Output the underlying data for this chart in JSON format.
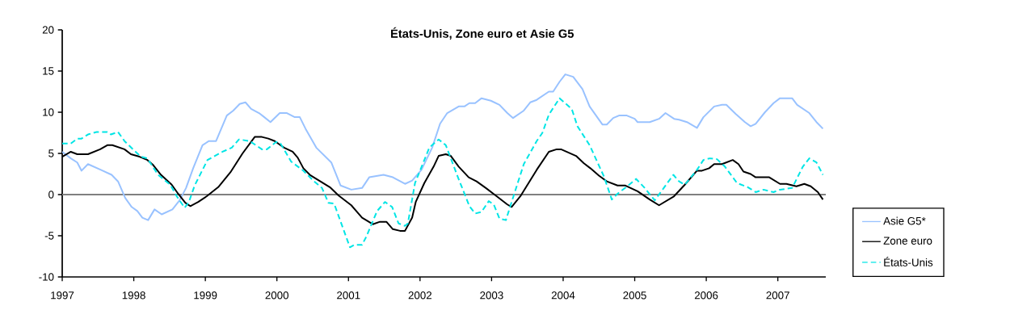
{
  "chart_data": {
    "type": "line",
    "title": "États-Unis, Zone euro et Asie G5",
    "xlim": [
      1997,
      2007.67
    ],
    "xticks": [
      1997,
      1998,
      1999,
      2000,
      2001,
      2002,
      2003,
      2004,
      2005,
      2006,
      2007
    ],
    "ylim": [
      -10,
      20
    ],
    "yticks": [
      -10,
      -5,
      0,
      5,
      10,
      15,
      20
    ],
    "grid": false,
    "legend": "right",
    "marker": "none",
    "ref_lines": [
      {
        "axis": "y",
        "value": 0,
        "color": "#808080",
        "line_style": "solid"
      }
    ],
    "series": [
      {
        "name": "Asie G5*",
        "color": "#99c2ff",
        "line_style": "solid",
        "x": [
          1997.0,
          1997.12,
          1997.21,
          1997.27,
          1997.36,
          1997.54,
          1997.69,
          1997.78,
          1997.88,
          1997.97,
          1998.05,
          1998.12,
          1998.2,
          1998.29,
          1998.39,
          1998.54,
          1998.64,
          1998.73,
          1998.83,
          1998.96,
          1999.05,
          1999.15,
          1999.3,
          1999.39,
          1999.48,
          1999.56,
          1999.64,
          1999.75,
          1999.81,
          1999.91,
          2000.04,
          2000.14,
          2000.25,
          2000.32,
          2000.4,
          2000.55,
          2000.76,
          2000.89,
          2001.04,
          2001.19,
          2001.29,
          2001.49,
          2001.62,
          2001.79,
          2001.89,
          2002.02,
          2002.17,
          2002.28,
          2002.38,
          2002.54,
          2002.62,
          2002.69,
          2002.77,
          2002.86,
          2002.99,
          2003.11,
          2003.22,
          2003.3,
          2003.45,
          2003.54,
          2003.63,
          2003.8,
          2003.86,
          2003.95,
          2004.03,
          2004.14,
          2004.27,
          2004.37,
          2004.55,
          2004.61,
          2004.7,
          2004.78,
          2004.89,
          2005.0,
          2005.04,
          2005.21,
          2005.34,
          2005.43,
          2005.55,
          2005.62,
          2005.73,
          2005.87,
          2005.96,
          2006.11,
          2006.22,
          2006.28,
          2006.41,
          2006.54,
          2006.62,
          2006.69,
          2006.82,
          2006.94,
          2007.03,
          2007.2,
          2007.27,
          2007.44,
          2007.54,
          2007.63
        ],
        "values": [
          5.2,
          4.4,
          3.9,
          2.9,
          3.7,
          3.0,
          2.4,
          1.6,
          -0.4,
          -1.5,
          -2.0,
          -2.8,
          -3.1,
          -1.8,
          -2.4,
          -1.8,
          -0.7,
          0.8,
          3.2,
          6.0,
          6.5,
          6.5,
          9.6,
          10.2,
          11.0,
          11.2,
          10.4,
          9.9,
          9.5,
          8.8,
          9.9,
          9.9,
          9.4,
          9.4,
          8.0,
          5.7,
          3.9,
          1.1,
          0.6,
          0.8,
          2.1,
          2.4,
          2.1,
          1.3,
          1.7,
          3.0,
          5.7,
          8.6,
          9.9,
          10.7,
          10.7,
          11.1,
          11.1,
          11.7,
          11.4,
          10.9,
          9.9,
          9.3,
          10.2,
          11.2,
          11.5,
          12.5,
          12.5,
          13.7,
          14.6,
          14.3,
          12.8,
          10.7,
          8.5,
          8.5,
          9.3,
          9.6,
          9.6,
          9.2,
          8.8,
          8.8,
          9.2,
          9.9,
          9.2,
          9.1,
          8.8,
          8.1,
          9.4,
          10.7,
          10.9,
          10.9,
          9.8,
          8.8,
          8.3,
          8.6,
          10.0,
          11.1,
          11.7,
          11.7,
          10.9,
          9.9,
          8.8,
          8.0
        ]
      },
      {
        "name": "Zone euro",
        "color": "#000000",
        "line_style": "solid",
        "x": [
          1997.0,
          1997.12,
          1997.21,
          1997.36,
          1997.53,
          1997.63,
          1997.7,
          1997.87,
          1997.96,
          1998.08,
          1998.19,
          1998.27,
          1998.38,
          1998.53,
          1998.62,
          1998.72,
          1998.79,
          1998.9,
          1999.02,
          1999.18,
          1999.35,
          1999.52,
          1999.69,
          1999.79,
          1999.88,
          1999.97,
          2000.1,
          2000.22,
          2000.29,
          2000.37,
          2000.46,
          2000.74,
          2000.86,
          2001.04,
          2001.19,
          2001.34,
          2001.44,
          2001.53,
          2001.62,
          2001.72,
          2001.79,
          2001.89,
          2001.94,
          2002.06,
          2002.19,
          2002.26,
          2002.36,
          2002.43,
          2002.54,
          2002.68,
          2002.79,
          2002.92,
          2003.07,
          2003.22,
          2003.28,
          2003.41,
          2003.63,
          2003.8,
          2003.91,
          2003.97,
          2004.18,
          2004.29,
          2004.38,
          2004.5,
          2004.61,
          2004.76,
          2004.87,
          2005.04,
          2005.21,
          2005.34,
          2005.55,
          2005.7,
          2005.87,
          2005.94,
          2006.04,
          2006.11,
          2006.22,
          2006.37,
          2006.45,
          2006.52,
          2006.62,
          2006.69,
          2006.88,
          2007.03,
          2007.12,
          2007.26,
          2007.37,
          2007.46,
          2007.56,
          2007.63
        ],
        "values": [
          4.6,
          5.2,
          4.9,
          4.9,
          5.5,
          6.0,
          6.0,
          5.5,
          4.9,
          4.6,
          4.2,
          3.6,
          2.4,
          1.2,
          0.1,
          -1.0,
          -1.4,
          -0.9,
          -0.2,
          0.9,
          2.7,
          5.0,
          7.0,
          7.0,
          6.8,
          6.5,
          5.7,
          5.2,
          4.5,
          3.2,
          2.4,
          0.9,
          -0.1,
          -1.3,
          -2.8,
          -3.6,
          -3.3,
          -3.3,
          -4.2,
          -4.4,
          -4.4,
          -2.8,
          -0.9,
          1.4,
          3.4,
          4.7,
          4.9,
          4.7,
          3.4,
          2.1,
          1.6,
          0.8,
          -0.2,
          -1.2,
          -1.5,
          -0.1,
          3.0,
          5.2,
          5.5,
          5.5,
          4.7,
          3.8,
          3.2,
          2.3,
          1.6,
          1.1,
          1.1,
          0.4,
          -0.6,
          -1.3,
          -0.2,
          1.2,
          2.9,
          2.9,
          3.2,
          3.7,
          3.7,
          4.2,
          3.7,
          2.8,
          2.5,
          2.1,
          2.1,
          1.3,
          1.3,
          1.0,
          1.3,
          1.0,
          0.3,
          -0.6
        ]
      },
      {
        "name": "États-Unis",
        "color": "#00e5e5",
        "line_style": "dashed",
        "x": [
          1997.0,
          1997.12,
          1997.21,
          1997.27,
          1997.36,
          1997.48,
          1997.63,
          1997.68,
          1997.78,
          1997.87,
          1998.0,
          1998.1,
          1998.19,
          1998.34,
          1998.51,
          1998.6,
          1998.71,
          1998.77,
          1998.85,
          1999.03,
          1999.24,
          1999.37,
          1999.47,
          1999.62,
          1999.79,
          1999.86,
          1999.99,
          2000.05,
          2000.2,
          2000.37,
          2000.52,
          2000.63,
          2000.72,
          2000.8,
          2001.02,
          2001.08,
          2001.19,
          2001.25,
          2001.4,
          2001.51,
          2001.61,
          2001.7,
          2001.79,
          2001.83,
          2001.93,
          2002.13,
          2002.26,
          2002.36,
          2002.53,
          2002.69,
          2002.77,
          2002.86,
          2002.96,
          2003.03,
          2003.11,
          2003.2,
          2003.28,
          2003.45,
          2003.63,
          2003.71,
          2003.8,
          2003.95,
          2004.12,
          2004.2,
          2004.37,
          2004.57,
          2004.68,
          2004.76,
          2004.91,
          2005.02,
          2005.13,
          2005.28,
          2005.54,
          2005.62,
          2005.7,
          2005.87,
          2005.96,
          2006.05,
          2006.15,
          2006.26,
          2006.43,
          2006.58,
          2006.69,
          2006.8,
          2006.94,
          2007.03,
          2007.2,
          2007.35,
          2007.44,
          2007.54,
          2007.63
        ],
        "values": [
          6.2,
          6.2,
          6.8,
          6.8,
          7.3,
          7.6,
          7.6,
          7.3,
          7.6,
          6.5,
          5.4,
          4.6,
          4.4,
          2.4,
          1.2,
          -0.2,
          -1.6,
          -0.9,
          1.1,
          4.2,
          5.2,
          5.7,
          6.7,
          6.5,
          5.5,
          5.5,
          6.4,
          6.2,
          4.0,
          2.9,
          1.6,
          0.8,
          -1.0,
          -1.1,
          -6.4,
          -6.1,
          -6.1,
          -5.1,
          -2.0,
          -0.9,
          -1.5,
          -3.5,
          -3.8,
          -3.5,
          1.4,
          5.7,
          6.7,
          6.0,
          2.1,
          -1.4,
          -2.3,
          -2.1,
          -0.8,
          -1.2,
          -2.9,
          -3.1,
          -0.9,
          3.7,
          6.5,
          7.5,
          9.7,
          11.7,
          10.4,
          8.3,
          6.0,
          2.2,
          -0.6,
          0.1,
          1.1,
          1.9,
          0.9,
          -0.7,
          2.4,
          1.6,
          1.2,
          3.0,
          4.2,
          4.4,
          4.3,
          3.4,
          1.4,
          0.9,
          0.3,
          0.6,
          0.3,
          0.6,
          0.8,
          3.4,
          4.4,
          3.9,
          2.4
        ]
      }
    ]
  }
}
